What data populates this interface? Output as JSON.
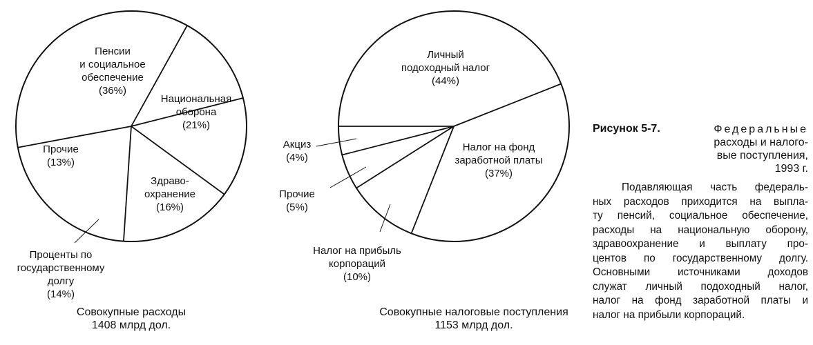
{
  "chart_data": [
    {
      "type": "pie",
      "slices": [
        {
          "label": [
            "Пенсии",
            "и социальное",
            "обеспечение",
            "(36%)"
          ],
          "value": 36
        },
        {
          "label": [
            "Национальная",
            "оборона",
            "(21%)"
          ],
          "value": 21
        },
        {
          "label": [
            "Здраво-",
            "охранение",
            "(16%)"
          ],
          "value": 16
        },
        {
          "label": [
            "Проценты по",
            "государственному",
            "долгу",
            "(14%)"
          ],
          "value": 14
        },
        {
          "label": [
            "Прочие",
            "(13%)"
          ],
          "value": 13
        }
      ],
      "caption": [
        "Совокупные расходы",
        "1408 млрд дол."
      ]
    },
    {
      "type": "pie",
      "slices": [
        {
          "label": [
            "Личный",
            "подоходный налог",
            "(44%)"
          ],
          "value": 44
        },
        {
          "label": [
            "Налог на фонд",
            "заработной платы",
            "(37%)"
          ],
          "value": 37
        },
        {
          "label": [
            "Налог на прибыль",
            "корпораций",
            "(10%)"
          ],
          "value": 10
        },
        {
          "label": [
            "Прочие",
            "(5%)"
          ],
          "value": 5
        },
        {
          "label": [
            "Акциз",
            "(4%)"
          ],
          "value": 4
        }
      ],
      "caption": [
        "Совокупные  налоговые поступления",
        "1153 млрд дол."
      ]
    }
  ],
  "figure": {
    "number": "Рисунок 5-7.",
    "title_lines": [
      "Федеральные",
      "расходы и налого-",
      "вые поступления,",
      "1993 г."
    ]
  },
  "text_lines": [
    "Подавляющая часть федераль-",
    "ных расходов приходится на выпла-",
    "ту пенсий, социальное обеспечение,",
    "расходы на национальную оборону,",
    "здравоохранение и выплату про-",
    "центов по государственному долгу.",
    "Основными источниками доходов",
    "служат личный подоходный налог,",
    "налог на фонд заработной платы и",
    "налог на прибыли корпораций."
  ]
}
